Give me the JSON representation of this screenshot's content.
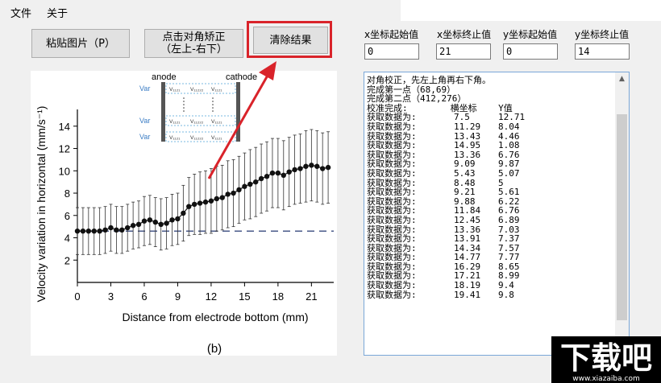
{
  "menu": {
    "file": "文件",
    "about": "关于"
  },
  "buttons": {
    "paste": "粘贴图片（P）",
    "diag_line1": "点击对角矫正",
    "diag_line2": "（左上-右下）",
    "clear": "清除结果"
  },
  "fields": {
    "x_start": {
      "label": "x坐标起始值",
      "value": "0"
    },
    "x_end": {
      "label": "x坐标终止值",
      "value": "21"
    },
    "y_start": {
      "label": "y坐标起始值",
      "value": "0"
    },
    "y_end": {
      "label": "y坐标终止值",
      "value": "14"
    }
  },
  "log": {
    "header": [
      "对角校正，先左上角再右下角。",
      "完成第一点（68,69）",
      "完成第二点（412,276）",
      "校准完成:        横坐标    Y值"
    ],
    "row_prefix": "获取数据为:",
    "rows": [
      [
        "7.5",
        "12.71"
      ],
      [
        "11.29",
        "8.04"
      ],
      [
        "13.43",
        "4.46"
      ],
      [
        "14.95",
        "1.08"
      ],
      [
        "13.36",
        "6.76"
      ],
      [
        "9.09",
        "9.87"
      ],
      [
        "5.43",
        "5.07"
      ],
      [
        "8.48",
        "5"
      ],
      [
        "9.21",
        "5.61"
      ],
      [
        "9.88",
        "6.22"
      ],
      [
        "11.84",
        "6.76"
      ],
      [
        "12.45",
        "6.89"
      ],
      [
        "13.36",
        "7.03"
      ],
      [
        "13.91",
        "7.37"
      ],
      [
        "14.34",
        "7.57"
      ],
      [
        "14.77",
        "7.77"
      ],
      [
        "16.29",
        "8.65"
      ],
      [
        "17.21",
        "8.99"
      ],
      [
        "18.19",
        "9.4"
      ],
      [
        "19.41",
        "9.8"
      ]
    ]
  },
  "figure": {
    "ylabel": "Velocity variation in horizontal (mm/s⁻¹)",
    "xlabel": "Distance from electrode bottom (mm)",
    "caption": "(b)",
    "inset_left": "anode",
    "inset_right": "cathode",
    "inset_row_label": "Var",
    "inset_cell": "V₁₁₂₁",
    "inset_cell_mid": "V₁₁₂₂₂",
    "inset_ellipsis": "…",
    "xticks": [
      "0",
      "3",
      "6",
      "9",
      "12",
      "15",
      "18",
      "21"
    ],
    "yticks": [
      "2",
      "4",
      "6",
      "8",
      "10",
      "12",
      "14"
    ]
  },
  "chart_data": {
    "type": "line",
    "xlabel": "Distance from electrode bottom (mm)",
    "ylabel": "Velocity variation in horizontal (mm/s⁻¹)",
    "xlim": [
      0,
      23
    ],
    "ylim": [
      0,
      15.5
    ],
    "x": [
      0,
      0.5,
      1,
      1.5,
      2,
      2.5,
      3,
      3.5,
      4,
      4.5,
      5,
      5.5,
      6,
      6.5,
      7,
      7.5,
      8,
      8.5,
      9,
      9.5,
      10,
      10.5,
      11,
      11.5,
      12,
      12.5,
      13,
      13.5,
      14,
      14.5,
      15,
      15.5,
      16,
      16.5,
      17,
      17.5,
      18,
      18.5,
      19,
      19.5,
      20,
      20.5,
      21,
      21.5,
      22,
      22.5
    ],
    "series": [
      {
        "values": [
          4.6,
          4.6,
          4.6,
          4.6,
          4.6,
          4.7,
          4.9,
          4.7,
          4.7,
          4.9,
          5.1,
          5.2,
          5.5,
          5.6,
          5.4,
          5.2,
          5.3,
          5.6,
          5.7,
          6.2,
          6.8,
          7.0,
          7.1,
          7.2,
          7.3,
          7.5,
          7.6,
          7.9,
          8.0,
          8.3,
          8.6,
          8.8,
          9.0,
          9.3,
          9.5,
          9.8,
          9.8,
          9.6,
          9.9,
          10.1,
          10.2,
          10.4,
          10.5,
          10.4,
          10.2,
          10.3
        ],
        "error": [
          2.1,
          2.1,
          2.1,
          2.1,
          2.1,
          2.1,
          2.1,
          2.1,
          2.1,
          2.1,
          2.1,
          2.1,
          2.2,
          2.2,
          2.2,
          2.3,
          2.3,
          2.3,
          2.3,
          2.5,
          2.6,
          2.7,
          2.8,
          2.8,
          2.9,
          2.9,
          2.9,
          3.0,
          3.0,
          3.0,
          3.0,
          3.1,
          3.1,
          3.1,
          3.1,
          3.1,
          3.1,
          3.1,
          3.1,
          3.1,
          3.1,
          3.2,
          3.2,
          3.2,
          3.2,
          3.2
        ]
      },
      {
        "values": [
          4.6,
          4.6
        ],
        "x": [
          0,
          23
        ]
      }
    ],
    "grid": false,
    "colors": {
      "points": "#111111",
      "dashed": "#4a5a8a"
    }
  },
  "watermark": {
    "brand": "下载吧",
    "site": "www.xiazaiba.com"
  },
  "colors": {
    "highlight": "#d9232a",
    "arrow": "#d9232a"
  }
}
